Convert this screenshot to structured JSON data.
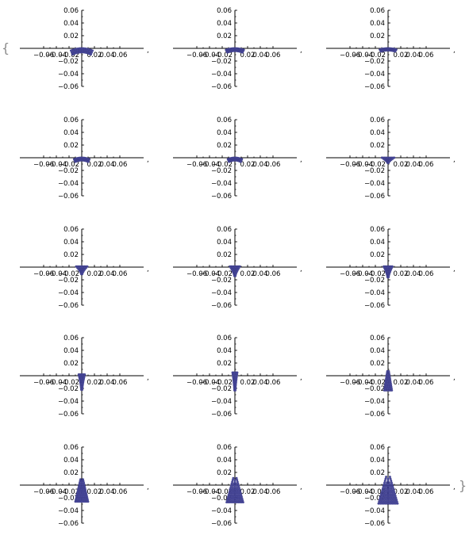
{
  "chart_data": {
    "type": "scatter",
    "layout": "grid of 15 scatter plots, 5 rows by 3 columns, list form",
    "list_open": "{",
    "list_close": "}",
    "separator": ",",
    "xlim": [
      -0.06,
      0.06
    ],
    "ylim": [
      -0.06,
      0.06
    ],
    "x_tick_labels": [
      "-0.06",
      "-0.04",
      "-0.02",
      "0.02",
      "0.04",
      "0.06"
    ],
    "x_tick_values": [
      -0.06,
      -0.04,
      -0.02,
      0.02,
      0.04,
      0.06
    ],
    "y_tick_labels": [
      "0.06",
      "0.04",
      "0.02",
      "-0.02",
      "-0.04",
      "-0.06"
    ],
    "y_tick_values": [
      0.06,
      0.04,
      0.02,
      -0.02,
      -0.04,
      -0.06
    ],
    "point_color": "#4a4a9c",
    "frames": [
      {
        "shape": "arc",
        "width": 0.034,
        "below": 0.006,
        "above": 0.0,
        "rows": 3,
        "cols": 18
      },
      {
        "shape": "arc",
        "width": 0.028,
        "below": 0.004,
        "above": 0.0,
        "rows": 3,
        "cols": 18
      },
      {
        "shape": "arc",
        "width": 0.026,
        "below": 0.003,
        "above": 0.0,
        "rows": 3,
        "cols": 18
      },
      {
        "shape": "arc",
        "width": 0.024,
        "below": 0.004,
        "above": 0.0,
        "rows": 3,
        "cols": 16
      },
      {
        "shape": "arc",
        "width": 0.022,
        "below": 0.004,
        "above": 0.0,
        "rows": 3,
        "cols": 16
      },
      {
        "shape": "funnel",
        "width": 0.018,
        "below": 0.008,
        "above": 0.0,
        "rows": 6,
        "cols": 11
      },
      {
        "shape": "funnel",
        "width": 0.016,
        "below": 0.011,
        "above": 0.001,
        "rows": 7,
        "cols": 9
      },
      {
        "shape": "funnel",
        "width": 0.014,
        "below": 0.014,
        "above": 0.001,
        "rows": 8,
        "cols": 9
      },
      {
        "shape": "funnel",
        "width": 0.012,
        "below": 0.016,
        "above": 0.001,
        "rows": 9,
        "cols": 8
      },
      {
        "shape": "funnel",
        "width": 0.008,
        "below": 0.022,
        "above": 0.002,
        "rows": 11,
        "cols": 6
      },
      {
        "shape": "funnel",
        "width": 0.006,
        "below": 0.023,
        "above": 0.005,
        "rows": 12,
        "cols": 5
      },
      {
        "shape": "tree",
        "width": 0.012,
        "below": 0.023,
        "above": 0.007,
        "rows": 12,
        "cols": 7
      },
      {
        "shape": "tree",
        "width": 0.02,
        "below": 0.026,
        "above": 0.009,
        "rows": 14,
        "cols": 9
      },
      {
        "shape": "tree",
        "width": 0.026,
        "below": 0.027,
        "above": 0.011,
        "rows": 14,
        "cols": 11
      },
      {
        "shape": "tree",
        "width": 0.03,
        "below": 0.029,
        "above": 0.013,
        "rows": 15,
        "cols": 12
      }
    ]
  }
}
